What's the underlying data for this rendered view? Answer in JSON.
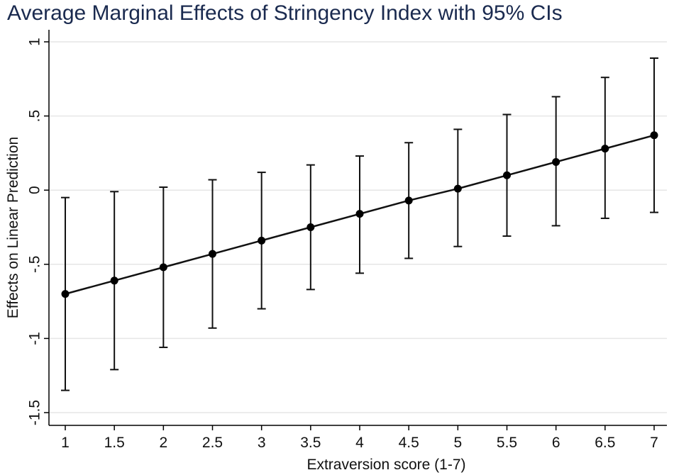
{
  "chart_data": {
    "type": "line",
    "title": "Average Marginal Effects of Stringency Index with 95% CIs",
    "xlabel": "Extraversion score (1-7)",
    "ylabel": "Effects on Linear Prediction",
    "xlim": [
      1,
      7
    ],
    "ylim": [
      -1.5,
      1
    ],
    "x_ticks": [
      1,
      1.5,
      2,
      2.5,
      3,
      3.5,
      4,
      4.5,
      5,
      5.5,
      6,
      6.5,
      7
    ],
    "x_tick_labels": [
      "1",
      "1.5",
      "2",
      "2.5",
      "3",
      "3.5",
      "4",
      "4.5",
      "5",
      "5.5",
      "6",
      "6.5",
      "7"
    ],
    "y_ticks": [
      -1.5,
      -1,
      -0.5,
      0,
      0.5,
      1
    ],
    "y_tick_labels": [
      "-1.5",
      "-1",
      "-.5",
      "0",
      ".5",
      "1"
    ],
    "grid": true,
    "series": [
      {
        "name": "Average marginal effect",
        "x": [
          1,
          1.5,
          2,
          2.5,
          3,
          3.5,
          4,
          4.5,
          5,
          5.5,
          6,
          6.5,
          7
        ],
        "y": [
          -0.7,
          -0.61,
          -0.52,
          -0.43,
          -0.34,
          -0.25,
          -0.16,
          -0.07,
          0.01,
          0.1,
          0.19,
          0.28,
          0.37
        ],
        "ci_lower": [
          -1.35,
          -1.21,
          -1.06,
          -0.93,
          -0.8,
          -0.67,
          -0.56,
          -0.46,
          -0.38,
          -0.31,
          -0.24,
          -0.19,
          -0.15
        ],
        "ci_upper": [
          -0.05,
          -0.01,
          0.02,
          0.07,
          0.12,
          0.17,
          0.23,
          0.32,
          0.41,
          0.51,
          0.63,
          0.76,
          0.89
        ]
      }
    ]
  }
}
